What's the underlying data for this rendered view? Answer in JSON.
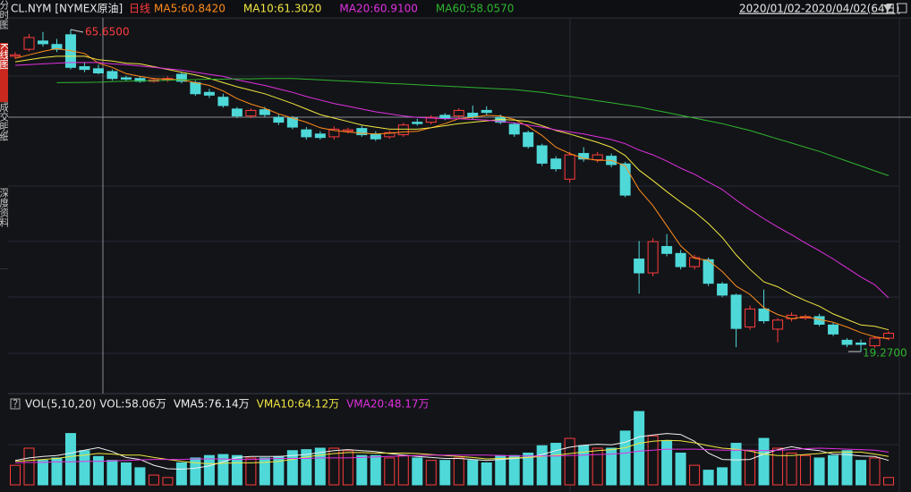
{
  "header": {
    "symbol": "CL.NYM [NYMEX原油]",
    "period": "日线",
    "range": "2020/01/02-2020/04/02(64日)"
  },
  "sidebar": [
    "分时图",
    "K线图",
    "成交明细",
    "深度资料"
  ],
  "chart_data": [
    {
      "type": "candlestick",
      "legend": [
        "MA5:60.8420",
        "MA10:61.3020",
        "MA20:60.9100",
        "MA60:58.0570"
      ],
      "max_label": "65.6500",
      "min_label": "19.2700",
      "up_color": "#ff3c3c",
      "down_color": "#4fd8d8",
      "open": [
        61.8,
        62.8,
        64.0,
        63.5,
        64.9,
        60.3,
        60.0,
        59.6,
        58.7,
        58.6,
        58.2,
        58.4,
        59.2,
        58.0,
        56.6,
        55.9,
        54.2,
        53.2,
        54.1,
        53.0,
        52.9,
        51.2,
        50.6,
        50.2,
        51.0,
        51.4,
        50.6,
        50.2,
        50.5,
        52.3,
        52.3,
        53.3,
        53.2,
        53.6,
        54.0,
        53.0,
        52.0,
        50.8,
        48.9,
        47.0,
        44.1,
        47.8,
        46.9,
        47.4,
        46.3,
        32.6,
        30.6,
        34.4,
        33.4,
        31.5,
        32.5,
        29.0,
        27.4,
        22.8,
        25.4,
        22.5,
        24.0,
        24.1,
        24.3,
        23.1,
        20.9,
        20.5,
        20.1,
        21.2
      ],
      "high": [
        62.4,
        65.0,
        65.3,
        64.3,
        65.65,
        60.9,
        60.6,
        59.9,
        59.0,
        58.9,
        58.7,
        58.9,
        59.5,
        58.3,
        57.1,
        56.4,
        54.5,
        54.3,
        54.5,
        53.4,
        53.2,
        51.6,
        51.0,
        51.7,
        51.5,
        51.8,
        51.0,
        51.1,
        52.2,
        52.8,
        53.3,
        53.6,
        54.3,
        54.7,
        54.6,
        53.4,
        52.3,
        51.1,
        49.2,
        47.4,
        48.0,
        48.7,
        48.0,
        47.8,
        46.6,
        35.2,
        35.6,
        36.2,
        33.9,
        33.2,
        32.8,
        29.3,
        27.6,
        25.9,
        28.2,
        24.1,
        24.9,
        24.6,
        24.7,
        23.4,
        21.2,
        21.0,
        21.5,
        22.2
      ],
      "low": [
        61.4,
        62.5,
        63.2,
        62.4,
        59.9,
        59.5,
        59.2,
        58.3,
        58.2,
        58.0,
        58.0,
        58.1,
        57.9,
        56.1,
        55.8,
        54.4,
        52.9,
        52.9,
        53.1,
        51.9,
        51.3,
        49.8,
        49.8,
        49.8,
        50.7,
        50.2,
        49.6,
        49.9,
        50.2,
        51.8,
        52.0,
        52.6,
        52.8,
        52.7,
        53.3,
        52.0,
        50.2,
        48.5,
        46.0,
        45.2,
        43.6,
        46.6,
        46.5,
        45.8,
        41.5,
        27.6,
        30.1,
        33.0,
        31.1,
        31.1,
        28.7,
        27.1,
        19.9,
        22.4,
        23.3,
        20.6,
        23.6,
        23.8,
        22.9,
        21.5,
        19.9,
        19.27,
        19.8,
        20.9
      ],
      "close": [
        62.0,
        64.5,
        63.6,
        62.8,
        60.2,
        59.9,
        59.4,
        58.6,
        58.5,
        58.2,
        58.4,
        58.6,
        58.2,
        56.4,
        56.2,
        54.7,
        53.2,
        54.0,
        53.4,
        52.3,
        51.6,
        50.2,
        50.1,
        51.3,
        51.2,
        50.5,
        49.9,
        50.8,
        51.9,
        52.1,
        53.0,
        52.9,
        54.0,
        53.0,
        53.7,
        52.3,
        50.6,
        48.8,
        46.4,
        45.6,
        47.6,
        47.0,
        47.6,
        46.2,
        41.8,
        30.6,
        35.1,
        33.4,
        31.5,
        32.8,
        29.1,
        27.4,
        22.6,
        25.4,
        23.7,
        23.8,
        24.5,
        24.3,
        23.2,
        21.8,
        20.3,
        20.3,
        21.2,
        21.9
      ],
      "series": [
        {
          "color": "#ff8c1a",
          "values": [
            61.5,
            62.0,
            62.5,
            62.9,
            62.6,
            62.2,
            60.8,
            60.2,
            59.3,
            58.9,
            58.6,
            58.5,
            58.4,
            58.0,
            57.6,
            56.8,
            55.7,
            54.9,
            54.3,
            53.5,
            52.9,
            52.3,
            51.5,
            51.1,
            50.9,
            50.7,
            50.6,
            50.7,
            50.9,
            51.0,
            51.5,
            52.1,
            52.8,
            53.0,
            53.3,
            53.2,
            52.7,
            51.7,
            50.4,
            48.7,
            47.8,
            47.1,
            46.8,
            46.8,
            46.0,
            42.6,
            40.3,
            37.4,
            34.5,
            32.7,
            32.4,
            30.8,
            28.7,
            27.5,
            25.6,
            24.6,
            24.0,
            24.3,
            23.9,
            23.5,
            22.8,
            22.0,
            21.4,
            21.1
          ]
        },
        {
          "color": "#f0e640",
          "values": [
            61.0,
            61.3,
            61.6,
            61.8,
            61.8,
            61.8,
            61.3,
            61.1,
            60.8,
            60.7,
            60.3,
            59.9,
            59.5,
            59.1,
            58.6,
            58.0,
            57.4,
            56.9,
            56.4,
            55.7,
            55.0,
            54.2,
            53.4,
            52.9,
            52.4,
            51.9,
            51.6,
            51.3,
            51.3,
            51.3,
            51.5,
            51.8,
            52.1,
            52.3,
            52.5,
            52.7,
            52.6,
            52.4,
            51.8,
            51.1,
            50.6,
            50.0,
            49.4,
            48.7,
            47.5,
            45.4,
            43.9,
            42.3,
            40.8,
            39.4,
            37.7,
            35.7,
            33.2,
            31.1,
            29.3,
            28.6,
            27.5,
            26.6,
            25.8,
            24.7,
            23.9,
            23.1,
            22.9,
            22.4
          ]
        },
        {
          "color": "#e030e0",
          "values": [
            60.5,
            60.6,
            60.7,
            60.8,
            60.9,
            60.9,
            60.9,
            60.7,
            60.6,
            60.4,
            60.2,
            60.0,
            59.8,
            59.5,
            59.2,
            58.9,
            58.4,
            58.0,
            57.6,
            57.1,
            56.6,
            56.0,
            55.5,
            55.0,
            54.6,
            54.2,
            53.8,
            53.5,
            53.2,
            53.0,
            52.9,
            52.8,
            52.8,
            52.7,
            52.6,
            52.4,
            52.2,
            51.9,
            51.6,
            51.2,
            50.9,
            50.6,
            50.2,
            49.8,
            49.2,
            48.3,
            47.6,
            46.7,
            45.7,
            44.8,
            43.7,
            42.6,
            41.1,
            39.7,
            38.4,
            37.2,
            36.1,
            34.9,
            33.8,
            32.6,
            31.3,
            30.0,
            28.9,
            27.0
          ]
        },
        {
          "color": "#2fb52f",
          "values": [
            null,
            null,
            null,
            58.0,
            58.02,
            58.04,
            58.06,
            58.15,
            58.2,
            58.25,
            58.3,
            58.35,
            58.4,
            58.45,
            58.5,
            58.5,
            58.55,
            58.55,
            58.6,
            58.6,
            58.6,
            58.5,
            58.4,
            58.3,
            58.2,
            58.1,
            58.0,
            57.9,
            57.8,
            57.7,
            57.6,
            57.5,
            57.4,
            57.3,
            57.2,
            57.1,
            57.0,
            56.8,
            56.6,
            56.3,
            56.0,
            55.7,
            55.4,
            55.1,
            54.8,
            54.5,
            54.1,
            53.7,
            53.3,
            52.9,
            52.5,
            52.1,
            51.6,
            51.1,
            50.5,
            49.9,
            49.3,
            48.7,
            48.1,
            47.4,
            46.7,
            46.0,
            45.3,
            44.6
          ]
        }
      ]
    },
    {
      "type": "bar",
      "header": "VOL(5,10,20)",
      "legend": [
        "VOL:58.06万",
        "VMA5:76.14万",
        "VMA10:64.12万",
        "VMA20:48.17万"
      ],
      "legend_color": "#e8e8e8",
      "values": [
        40,
        75,
        50,
        55,
        105,
        70,
        58,
        50,
        45,
        35,
        20,
        15,
        45,
        55,
        60,
        62,
        60,
        55,
        55,
        58,
        70,
        72,
        75,
        75,
        70,
        60,
        60,
        55,
        60,
        55,
        50,
        50,
        55,
        50,
        45,
        60,
        60,
        65,
        80,
        85,
        95,
        80,
        75,
        75,
        110,
        150,
        100,
        90,
        65,
        40,
        30,
        35,
        85,
        70,
        95,
        75,
        65,
        60,
        55,
        60,
        70,
        50,
        55,
        15
      ],
      "series": [
        {
          "color": "#f0f0f0",
          "values": [
            50,
            55,
            58,
            60,
            65,
            71,
            76.14,
            68,
            56,
            52,
            40,
            33,
            32,
            34,
            39,
            47,
            56,
            58,
            58,
            58,
            60,
            62,
            66,
            70,
            72,
            70,
            68,
            64,
            61,
            58,
            56,
            54,
            54,
            52,
            50,
            52,
            54,
            56,
            62,
            70,
            77,
            81,
            83,
            82,
            87,
            98,
            102,
            105,
            103,
            89,
            65,
            52,
            51,
            52,
            63,
            72,
            78,
            73,
            70,
            63,
            62,
            59,
            58,
            50
          ]
        },
        {
          "color": "#f0e640",
          "values": [
            48,
            50,
            52,
            54,
            58,
            61,
            64.12,
            63,
            61,
            61,
            56,
            52,
            48,
            45,
            43,
            44,
            45,
            45,
            46,
            48,
            52,
            57,
            61,
            64,
            66,
            66,
            65,
            65,
            65,
            64,
            62,
            60,
            58,
            56,
            53,
            54,
            55,
            56,
            58,
            61,
            64,
            67,
            70,
            72,
            76,
            85,
            89,
            91,
            90,
            86,
            80,
            75,
            73,
            69,
            63,
            60,
            60,
            62,
            64,
            67,
            67,
            67,
            63,
            58
          ]
        },
        {
          "color": "#e030e0",
          "values": [
            45,
            46,
            46,
            47,
            47,
            48,
            48.17,
            49,
            50,
            51,
            52,
            52,
            52,
            53,
            53,
            53,
            52,
            52,
            53,
            54,
            54,
            54,
            55,
            55,
            55,
            56,
            57,
            58,
            59,
            60,
            61,
            61,
            61,
            61,
            61,
            60,
            59,
            59,
            59,
            59,
            60,
            61,
            62,
            63,
            65,
            69,
            71,
            73,
            73,
            73,
            72,
            71,
            71,
            71,
            70,
            71,
            72,
            74,
            75,
            74,
            73,
            72,
            71,
            67
          ]
        }
      ]
    }
  ]
}
